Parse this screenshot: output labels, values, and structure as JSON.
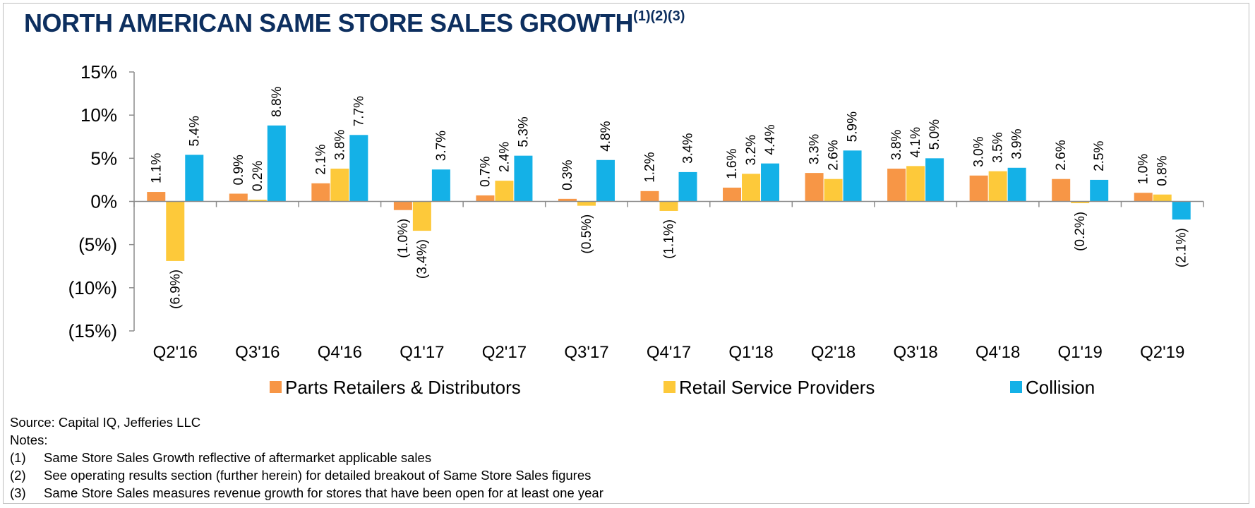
{
  "title": {
    "text": "NORTH AMERICAN SAME STORE SALES GROWTH",
    "superscript": "(1)(2)(3)"
  },
  "chart_data": {
    "type": "bar",
    "title": "NORTH AMERICAN SAME STORE SALES GROWTH",
    "categories": [
      "Q2'16",
      "Q3'16",
      "Q4'16",
      "Q1'17",
      "Q2'17",
      "Q3'17",
      "Q4'17",
      "Q1'18",
      "Q2'18",
      "Q3'18",
      "Q4'18",
      "Q1'19",
      "Q2'19"
    ],
    "series": [
      {
        "name": "Parts Retailers & Distributors",
        "color": "#f79646",
        "values": [
          1.1,
          0.9,
          2.1,
          -1.0,
          0.7,
          0.3,
          1.2,
          1.6,
          3.3,
          3.8,
          3.0,
          2.6,
          1.0
        ],
        "labels": [
          "1.1%",
          "0.9%",
          "2.1%",
          "(1.0%)",
          "0.7%",
          "0.3%",
          "1.2%",
          "1.6%",
          "3.3%",
          "3.8%",
          "3.0%",
          "2.6%",
          "1.0%"
        ]
      },
      {
        "name": "Retail Service Providers",
        "color": "#fdc93a",
        "values": [
          -6.9,
          0.2,
          3.8,
          -3.4,
          2.4,
          -0.5,
          -1.1,
          3.2,
          2.6,
          4.1,
          3.5,
          -0.2,
          0.8
        ],
        "labels": [
          "(6.9%)",
          "0.2%",
          "3.8%",
          "(3.4%)",
          "2.4%",
          "(0.5%)",
          "(1.1%)",
          "3.2%",
          "2.6%",
          "4.1%",
          "3.5%",
          "(0.2%)",
          "0.8%"
        ]
      },
      {
        "name": "Collision",
        "color": "#14b1e7",
        "values": [
          5.4,
          8.8,
          7.7,
          3.7,
          5.3,
          4.8,
          3.4,
          4.4,
          5.9,
          5.0,
          3.9,
          2.5,
          -2.1
        ],
        "labels": [
          "5.4%",
          "8.8%",
          "7.7%",
          "3.7%",
          "5.3%",
          "4.8%",
          "3.4%",
          "4.4%",
          "5.9%",
          "5.0%",
          "3.9%",
          "2.5%",
          "(2.1%)"
        ]
      }
    ],
    "yaxis": {
      "ticks": [
        15,
        10,
        5,
        0,
        -5,
        -10,
        -15
      ],
      "tick_labels": [
        "15%",
        "10%",
        "5%",
        "0%",
        "(5%)",
        "(10%)",
        "(15%)"
      ]
    },
    "ylim": [
      -15,
      15
    ],
    "grid": false,
    "legend_position": "bottom"
  },
  "notes": {
    "source": "Source: Capital IQ, Jefferies LLC",
    "heading": "Notes:",
    "items": [
      {
        "num": "(1)",
        "text": "Same Store Sales Growth reflective of aftermarket applicable sales"
      },
      {
        "num": "(2)",
        "text": "See operating results section (further herein) for detailed breakout of Same Store Sales figures"
      },
      {
        "num": "(3)",
        "text": "Same Store Sales measures revenue growth for stores that have been open for at least one year"
      }
    ]
  }
}
